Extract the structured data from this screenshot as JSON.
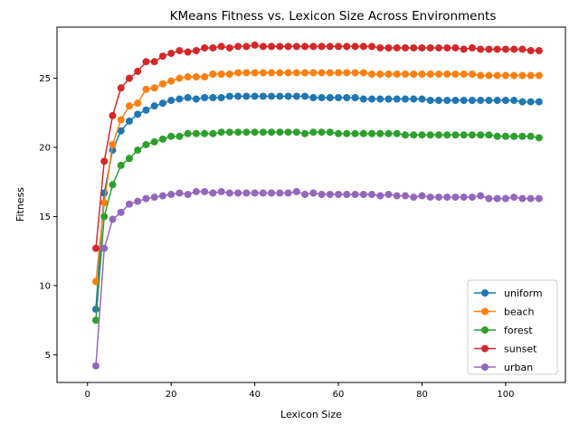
{
  "chart_data": {
    "type": "line",
    "title": "KMeans Fitness vs. Lexicon Size Across Environments",
    "xlabel": "Lexicon Size",
    "ylabel": "Fitness",
    "xlim": [
      -7.3,
      114.3
    ],
    "ylim": [
      3.0,
      28.7
    ],
    "xticks": [
      0,
      20,
      40,
      60,
      80,
      100
    ],
    "yticks": [
      5,
      10,
      15,
      20,
      25
    ],
    "grid": false,
    "legend_position": "lower right",
    "x": [
      2,
      4,
      6,
      8,
      10,
      12,
      14,
      16,
      18,
      20,
      22,
      24,
      26,
      28,
      30,
      32,
      34,
      36,
      38,
      40,
      42,
      44,
      46,
      48,
      50,
      52,
      54,
      56,
      58,
      60,
      62,
      64,
      66,
      68,
      70,
      72,
      74,
      76,
      78,
      80,
      82,
      84,
      86,
      88,
      90,
      92,
      94,
      96,
      98,
      100,
      102,
      104,
      106,
      108
    ],
    "series": [
      {
        "name": "uniform",
        "color": "#1f77b4",
        "values": [
          8.3,
          16.7,
          19.8,
          21.2,
          21.9,
          22.4,
          22.7,
          23.0,
          23.2,
          23.4,
          23.5,
          23.6,
          23.5,
          23.6,
          23.6,
          23.6,
          23.7,
          23.7,
          23.7,
          23.7,
          23.7,
          23.7,
          23.7,
          23.7,
          23.7,
          23.7,
          23.6,
          23.6,
          23.6,
          23.6,
          23.6,
          23.6,
          23.5,
          23.5,
          23.5,
          23.5,
          23.5,
          23.5,
          23.5,
          23.5,
          23.4,
          23.4,
          23.4,
          23.4,
          23.4,
          23.4,
          23.4,
          23.4,
          23.4,
          23.4,
          23.4,
          23.3,
          23.3,
          23.3
        ]
      },
      {
        "name": "beach",
        "color": "#ff7f0e",
        "values": [
          10.3,
          16.0,
          20.2,
          22.0,
          23.0,
          23.2,
          24.2,
          24.3,
          24.6,
          24.8,
          25.0,
          25.1,
          25.1,
          25.1,
          25.3,
          25.3,
          25.3,
          25.4,
          25.4,
          25.4,
          25.4,
          25.4,
          25.4,
          25.4,
          25.4,
          25.4,
          25.4,
          25.4,
          25.4,
          25.4,
          25.4,
          25.4,
          25.4,
          25.3,
          25.3,
          25.3,
          25.3,
          25.3,
          25.3,
          25.3,
          25.3,
          25.3,
          25.3,
          25.3,
          25.3,
          25.3,
          25.2,
          25.2,
          25.2,
          25.2,
          25.2,
          25.2,
          25.2,
          25.2
        ]
      },
      {
        "name": "forest",
        "color": "#2ca02c",
        "values": [
          7.5,
          15.0,
          17.3,
          18.7,
          19.2,
          19.8,
          20.2,
          20.4,
          20.6,
          20.8,
          20.8,
          21.0,
          21.0,
          21.0,
          21.0,
          21.1,
          21.1,
          21.1,
          21.1,
          21.1,
          21.1,
          21.1,
          21.1,
          21.1,
          21.1,
          21.0,
          21.1,
          21.1,
          21.1,
          21.0,
          21.0,
          21.0,
          21.0,
          21.0,
          21.0,
          21.0,
          21.0,
          20.9,
          20.9,
          20.9,
          20.9,
          20.9,
          20.9,
          20.9,
          20.9,
          20.9,
          20.9,
          20.9,
          20.8,
          20.8,
          20.8,
          20.8,
          20.8,
          20.7
        ]
      },
      {
        "name": "sunset",
        "color": "#d62728",
        "values": [
          12.7,
          19.0,
          22.3,
          24.3,
          25.0,
          25.5,
          26.2,
          26.2,
          26.6,
          26.8,
          27.0,
          26.9,
          27.0,
          27.2,
          27.2,
          27.3,
          27.2,
          27.3,
          27.3,
          27.4,
          27.3,
          27.3,
          27.3,
          27.3,
          27.3,
          27.3,
          27.3,
          27.3,
          27.3,
          27.3,
          27.3,
          27.3,
          27.3,
          27.3,
          27.2,
          27.2,
          27.2,
          27.2,
          27.2,
          27.2,
          27.2,
          27.2,
          27.2,
          27.2,
          27.1,
          27.2,
          27.1,
          27.1,
          27.1,
          27.1,
          27.1,
          27.1,
          27.0,
          27.0
        ]
      },
      {
        "name": "urban",
        "color": "#9467bd",
        "values": [
          4.2,
          12.7,
          14.8,
          15.3,
          15.9,
          16.1,
          16.3,
          16.4,
          16.5,
          16.6,
          16.7,
          16.6,
          16.8,
          16.8,
          16.7,
          16.8,
          16.7,
          16.7,
          16.7,
          16.7,
          16.7,
          16.7,
          16.7,
          16.7,
          16.8,
          16.6,
          16.7,
          16.6,
          16.6,
          16.6,
          16.6,
          16.6,
          16.6,
          16.6,
          16.5,
          16.6,
          16.5,
          16.5,
          16.4,
          16.5,
          16.4,
          16.4,
          16.4,
          16.4,
          16.4,
          16.4,
          16.5,
          16.3,
          16.3,
          16.3,
          16.4,
          16.3,
          16.3,
          16.3
        ]
      }
    ]
  }
}
